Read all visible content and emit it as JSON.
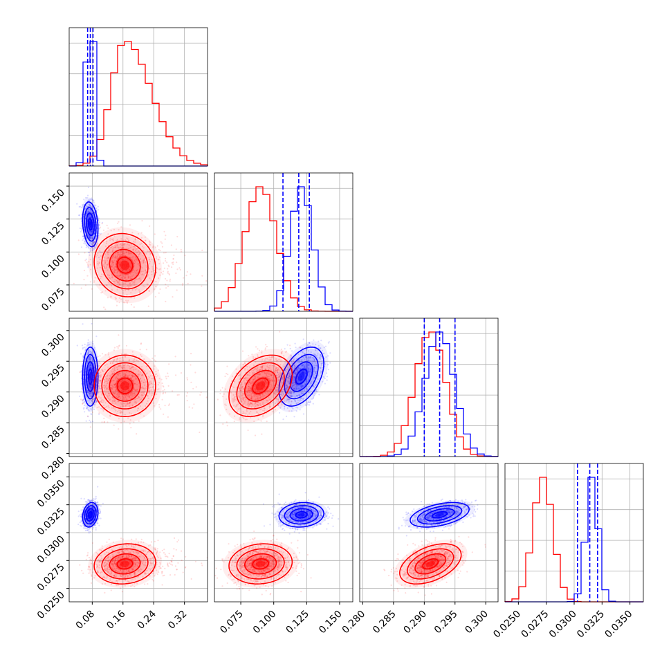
{
  "chart_data": {
    "type": "corner",
    "grid": true,
    "colors": {
      "series_a": "#0000ff",
      "series_b": "#ff0000"
    },
    "parameters": [
      {
        "index": 0,
        "range": [
          0.02,
          0.38
        ],
        "ticks": [
          0.08,
          0.16,
          0.24,
          0.32
        ],
        "tick_labels": [
          "0.08",
          "0.16",
          "0.24",
          "0.32"
        ]
      },
      {
        "index": 1,
        "range": [
          0.055,
          0.16
        ],
        "ticks": [
          0.075,
          0.1,
          0.125,
          0.15
        ],
        "tick_labels": [
          "0.075",
          "0.100",
          "0.125",
          "0.150"
        ]
      },
      {
        "index": 2,
        "range": [
          0.2795,
          0.302
        ],
        "ticks": [
          0.28,
          0.285,
          0.29,
          0.295,
          0.3
        ],
        "tick_labels": [
          "0.280",
          "0.285",
          "0.290",
          "0.295",
          "0.300"
        ]
      },
      {
        "index": 3,
        "range": [
          0.0238,
          0.0362
        ],
        "ticks": [
          0.025,
          0.0275,
          0.03,
          0.0325,
          0.035
        ],
        "tick_labels": [
          "0.0250",
          "0.0275",
          "0.0300",
          "0.0325",
          "0.0350"
        ]
      }
    ],
    "series": [
      {
        "color": "#0000ff",
        "mean": [
          0.075,
          0.121,
          0.2925,
          0.0316
        ],
        "sd": [
          0.01,
          0.0085,
          0.0024,
          0.00055
        ],
        "corr": [
          [
            0,
            1,
            -0.2
          ],
          [
            0,
            2,
            0.0
          ],
          [
            0,
            3,
            0.2
          ],
          [
            1,
            2,
            0.45
          ],
          [
            1,
            3,
            0.1
          ],
          [
            2,
            3,
            0.45
          ]
        ],
        "quantiles": [
          [
            0.068,
            0.075,
            0.082
          ],
          [
            0.107,
            0.119,
            0.127
          ],
          [
            0.29,
            0.2925,
            0.295
          ],
          [
            0.0303,
            0.0314,
            0.0321
          ]
        ]
      },
      {
        "color": "#ff0000",
        "mean": [
          0.165,
          0.09,
          0.291,
          0.0272
        ],
        "sd": [
          0.04,
          0.012,
          0.0025,
          0.0009
        ],
        "corr": [
          [
            0,
            1,
            -0.1
          ],
          [
            0,
            2,
            0.0
          ],
          [
            0,
            3,
            0.1
          ],
          [
            1,
            2,
            0.35
          ],
          [
            1,
            3,
            0.1
          ],
          [
            2,
            3,
            0.45
          ]
        ],
        "quantiles": []
      }
    ]
  }
}
